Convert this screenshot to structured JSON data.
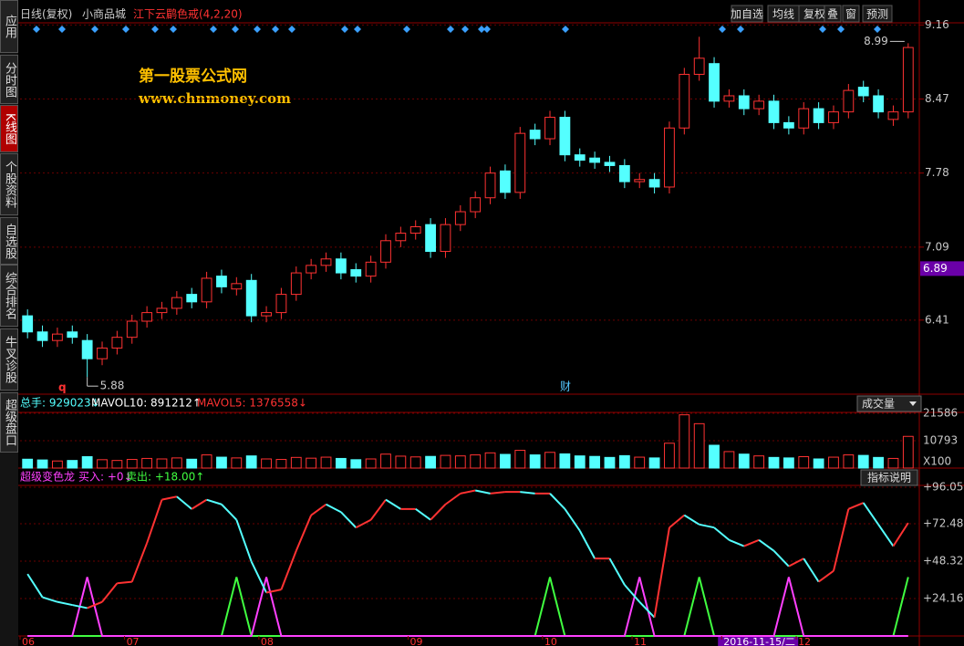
{
  "header": {
    "period": "日线(复权)",
    "stock": "小商品城",
    "indicator": "江下云鹛色戒(4,2,20)",
    "buttons": [
      "加自选",
      "均线",
      "复权",
      "叠",
      "窗",
      "预测"
    ]
  },
  "sidebar": [
    "应用",
    "分时图",
    "K线图",
    "个股资料",
    "自选股",
    "综合排名",
    "牛叉诊股",
    "超级盘口"
  ],
  "logo": {
    "name": "第一股票公式网",
    "url": "www.chnmoney.com"
  },
  "chart_data": [
    {
      "type": "candlestick",
      "notes": [
        "q",
        "财"
      ],
      "cursor_price": 6.89,
      "ylim": [
        5.72,
        9.18
      ],
      "yticks": [
        9.16,
        8.47,
        7.78,
        7.09,
        6.41
      ],
      "up_color": "#ff3232",
      "down_color": "#54ffff",
      "open": [
        6.45,
        6.3,
        6.22,
        6.3,
        6.22,
        6.05,
        6.15,
        6.25,
        6.4,
        6.48,
        6.52,
        6.65,
        6.58,
        6.82,
        6.7,
        6.78,
        6.45,
        6.48,
        6.65,
        6.85,
        6.92,
        6.98,
        6.88,
        6.82,
        6.95,
        7.15,
        7.22,
        7.3,
        7.05,
        7.3,
        7.42,
        7.55,
        7.8,
        7.6,
        8.18,
        8.1,
        8.3,
        7.95,
        7.92,
        7.88,
        7.85,
        7.7,
        7.72,
        7.65,
        8.2,
        8.7,
        8.8,
        8.45,
        8.5,
        8.38,
        8.45,
        8.25,
        8.2,
        8.38,
        8.25,
        8.35,
        8.58,
        8.5,
        8.28,
        8.35
      ],
      "close": [
        6.3,
        6.22,
        6.28,
        6.25,
        6.05,
        6.15,
        6.25,
        6.4,
        6.48,
        6.52,
        6.62,
        6.58,
        6.8,
        6.72,
        6.75,
        6.45,
        6.48,
        6.65,
        6.85,
        6.92,
        6.98,
        6.85,
        6.82,
        6.95,
        7.15,
        7.22,
        7.28,
        7.05,
        7.3,
        7.42,
        7.55,
        7.78,
        7.6,
        8.15,
        8.1,
        8.3,
        7.95,
        7.9,
        7.88,
        7.85,
        7.7,
        7.72,
        7.65,
        8.2,
        8.7,
        8.85,
        8.45,
        8.5,
        8.38,
        8.45,
        8.25,
        8.2,
        8.38,
        8.25,
        8.35,
        8.55,
        8.5,
        8.35,
        8.35,
        8.95
      ],
      "high": [
        6.51,
        6.36,
        6.34,
        6.36,
        6.28,
        6.21,
        6.31,
        6.46,
        6.54,
        6.58,
        6.68,
        6.71,
        6.86,
        6.88,
        6.81,
        6.84,
        6.54,
        6.71,
        6.91,
        6.98,
        7.04,
        7.04,
        6.94,
        7.01,
        7.21,
        7.28,
        7.34,
        7.36,
        7.36,
        7.48,
        7.61,
        7.84,
        7.86,
        8.21,
        8.24,
        8.36,
        8.36,
        8.01,
        7.98,
        7.94,
        7.91,
        7.78,
        7.78,
        8.26,
        8.76,
        9.05,
        8.86,
        8.56,
        8.56,
        8.51,
        8.51,
        8.31,
        8.44,
        8.44,
        8.41,
        8.61,
        8.64,
        8.56,
        8.41,
        8.99
      ],
      "low": [
        6.24,
        6.16,
        6.16,
        6.19,
        5.88,
        5.99,
        6.09,
        6.19,
        6.34,
        6.42,
        6.46,
        6.52,
        6.52,
        6.66,
        6.64,
        6.39,
        6.39,
        6.42,
        6.59,
        6.79,
        6.86,
        6.79,
        6.76,
        6.76,
        6.89,
        7.09,
        7.16,
        6.99,
        6.99,
        7.24,
        7.36,
        7.49,
        7.54,
        7.54,
        8.04,
        8.04,
        7.89,
        7.84,
        7.82,
        7.79,
        7.64,
        7.64,
        7.59,
        7.59,
        8.14,
        8.64,
        8.39,
        8.39,
        8.32,
        8.32,
        8.19,
        8.14,
        8.14,
        8.19,
        8.19,
        8.29,
        8.44,
        8.29,
        8.22,
        8.29
      ]
    },
    {
      "type": "bar",
      "legend": [
        "总手: 929023↓",
        "MAVOL10: 891212↑",
        "MAVOL5: 1376558↓"
      ],
      "selector": "成交量",
      "unit": "X100",
      "ylim": [
        0,
        21586
      ],
      "yticks": [
        21586,
        10793
      ],
      "values": [
        3500,
        3200,
        2800,
        3000,
        4500,
        3300,
        3000,
        3400,
        3800,
        3600,
        4000,
        3500,
        5200,
        4300,
        4000,
        4800,
        3600,
        3400,
        4200,
        3900,
        4300,
        3800,
        3300,
        3600,
        5500,
        4700,
        4400,
        4600,
        5000,
        4800,
        5200,
        6000,
        5400,
        7000,
        5200,
        6200,
        5600,
        4800,
        4600,
        4200,
        4900,
        4300,
        4000,
        9800,
        21000,
        17500,
        9000,
        6500,
        5500,
        4800,
        4200,
        4000,
        4500,
        3600,
        4300,
        5200,
        5000,
        4200,
        3800,
        12500
      ]
    },
    {
      "type": "line",
      "name": "超级变色龙",
      "legend": [
        "买入: +0↓",
        "卖出: +18.00↑"
      ],
      "button": "指标说明",
      "ylim": [
        0,
        96.05
      ],
      "yticks": [
        {
          "value": 96.05,
          "label": "+96.05"
        },
        {
          "value": 72.48,
          "label": "+72.48"
        },
        {
          "value": 48.32,
          "label": "+48.32"
        },
        {
          "value": 24.16,
          "label": "+24.16"
        }
      ],
      "categories": [
        "06",
        null,
        null,
        null,
        null,
        null,
        null,
        "07",
        null,
        null,
        null,
        null,
        null,
        null,
        null,
        null,
        "08",
        null,
        null,
        null,
        null,
        null,
        null,
        null,
        null,
        null,
        "09",
        null,
        null,
        null,
        null,
        null,
        null,
        null,
        null,
        "10",
        null,
        null,
        null,
        null,
        null,
        "11",
        null,
        null,
        null,
        null,
        null,
        "2016-11-15/二",
        null,
        null,
        null,
        null,
        "12",
        null,
        null,
        null,
        null,
        null,
        null,
        null
      ],
      "values": [
        40,
        25,
        22,
        20,
        18,
        22,
        34,
        35,
        60,
        88,
        90,
        82,
        88,
        85,
        75,
        48,
        28,
        30,
        55,
        78,
        85,
        80,
        70,
        75,
        88,
        82,
        82,
        75,
        85,
        92,
        94,
        92,
        93,
        93,
        92,
        92,
        82,
        68,
        50,
        50,
        33,
        22,
        12,
        70,
        78,
        72,
        70,
        62,
        58,
        62,
        55,
        45,
        50,
        35,
        42,
        82,
        86,
        72,
        58,
        73
      ],
      "buy": [
        0,
        0,
        0,
        0,
        38,
        0,
        0,
        0,
        0,
        0,
        0,
        0,
        0,
        0,
        0,
        0,
        38,
        0,
        0,
        0,
        0,
        0,
        0,
        0,
        0,
        0,
        0,
        0,
        0,
        0,
        0,
        0,
        0,
        0,
        0,
        0,
        0,
        0,
        0,
        0,
        0,
        38,
        0,
        0,
        0,
        0,
        0,
        0,
        0,
        0,
        0,
        38,
        0,
        0,
        0,
        0,
        0,
        0,
        0,
        0
      ],
      "sell": [
        0,
        0,
        0,
        0,
        0,
        0,
        0,
        0,
        0,
        0,
        0,
        0,
        0,
        0,
        38,
        0,
        0,
        0,
        0,
        0,
        0,
        0,
        0,
        0,
        0,
        0,
        0,
        0,
        0,
        0,
        0,
        0,
        0,
        0,
        0,
        38,
        0,
        0,
        0,
        0,
        0,
        0,
        0,
        0,
        0,
        38,
        0,
        0,
        0,
        0,
        0,
        0,
        0,
        0,
        0,
        0,
        0,
        0,
        0,
        38
      ],
      "buy_color": "#ff40ff",
      "sell_color": "#40ff40",
      "up_color": "#ff3232",
      "down_color": "#54ffff"
    }
  ]
}
